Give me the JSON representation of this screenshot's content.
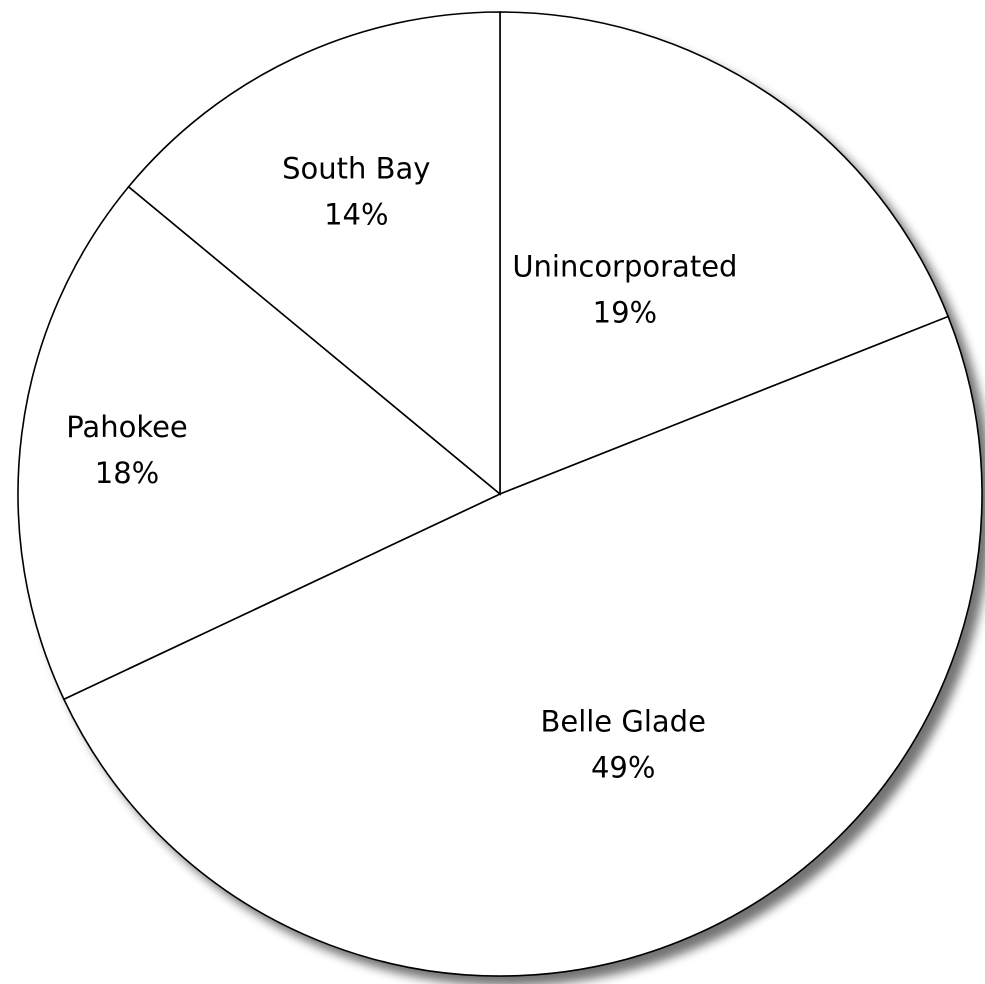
{
  "chart_data": {
    "type": "pie",
    "labels": [
      "Unincorporated",
      "Belle Glade",
      "Pahokee",
      "South Bay"
    ],
    "values": [
      19,
      49,
      18,
      14
    ],
    "value_labels": [
      "19%",
      "49%",
      "18%",
      "14%"
    ],
    "start_angle_deg": 90,
    "direction": "clockwise",
    "legend": "none",
    "colors": [
      "#ffffff",
      "#ffffff",
      "#ffffff",
      "#ffffff"
    ],
    "outline_color": "#000000"
  }
}
